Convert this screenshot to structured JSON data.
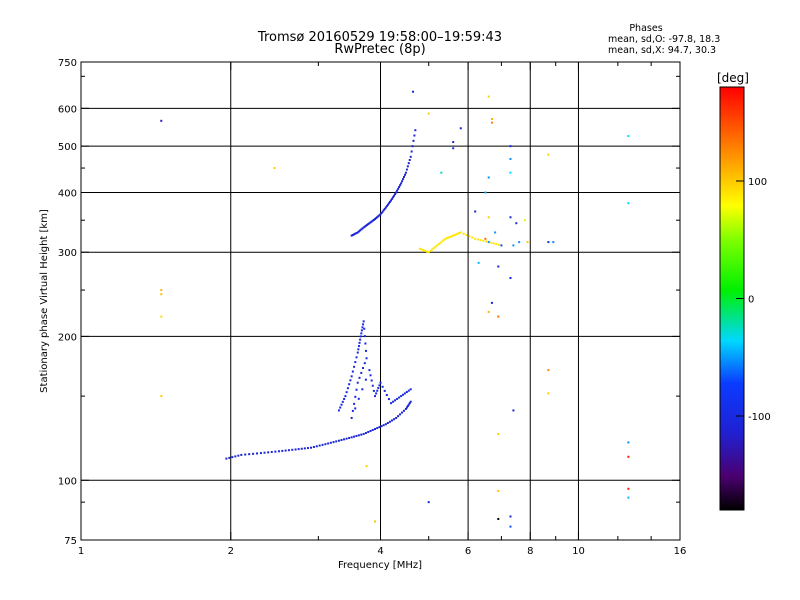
{
  "chart_data": {
    "type": "scatter",
    "title": "Tromsø 20160529 19:58:00–19:59:43",
    "subtitle": "RwPretec (8p)",
    "xlabel": "Frequency [MHz]",
    "ylabel": "Stationary phase Virtual Height [km]",
    "x_scale": "log",
    "y_scale": "log",
    "xlim": [
      1,
      16
    ],
    "ylim": [
      75,
      750
    ],
    "x_ticks": [
      1,
      2,
      4,
      6,
      8,
      10,
      16
    ],
    "x_tick_labels": [
      "1",
      "2",
      "4",
      "6",
      "8",
      "10",
      "16"
    ],
    "x_minor_ticks": [
      3,
      5,
      7,
      9,
      12,
      14
    ],
    "y_ticks": [
      75,
      100,
      200,
      300,
      400,
      500,
      600,
      750
    ],
    "y_tick_labels": [
      "75",
      "100",
      "200",
      "300",
      "400",
      "500",
      "600",
      "750"
    ],
    "y_minor_ticks": [
      90,
      150,
      250,
      350,
      450,
      700
    ],
    "grid_x": [
      2,
      4,
      6,
      8,
      10
    ],
    "grid_y": [
      100,
      200,
      300,
      400,
      500,
      600
    ],
    "colorbar": {
      "unit": "[deg]",
      "range": [
        -180,
        180
      ],
      "ticks": [
        100,
        0,
        -100
      ],
      "tick_labels": [
        "100",
        "0",
        "-100"
      ]
    },
    "phase_info": {
      "title": "Phases",
      "line1": "mean, sd,O: -97.8, 18.3",
      "line2": "mean, sd,X:  94.7, 30.3"
    },
    "traces": [
      {
        "name": "O-F-trace",
        "f": [
          3.5,
          3.6,
          3.7,
          3.8,
          3.9,
          4.0,
          4.1,
          4.2,
          4.3,
          4.4,
          4.5,
          4.6,
          4.7
        ],
        "h": [
          325,
          330,
          338,
          345,
          352,
          360,
          372,
          385,
          400,
          418,
          440,
          475,
          540
        ],
        "phase": -110
      },
      {
        "name": "O-E-trace",
        "f": [
          1.96,
          2.1,
          2.3,
          2.5,
          2.7,
          2.9,
          3.1,
          3.3,
          3.5,
          3.7,
          3.9,
          4.1,
          4.3,
          4.5,
          4.6
        ],
        "h": [
          111,
          113,
          114,
          115,
          116,
          117,
          119,
          121,
          123,
          125,
          128,
          131,
          135,
          141,
          146
        ],
        "phase": -110
      },
      {
        "name": "O-Es-cluster",
        "f": [
          3.3,
          3.4,
          3.5,
          3.6,
          3.65,
          3.7,
          3.75,
          3.6,
          3.5,
          3.8,
          3.9,
          4.0,
          4.2,
          4.4,
          4.6
        ],
        "h": [
          140,
          150,
          165,
          185,
          200,
          215,
          180,
          160,
          135,
          170,
          150,
          160,
          145,
          150,
          155
        ],
        "phase": -105
      },
      {
        "name": "X-F-cluster",
        "f": [
          4.8,
          5.0,
          5.2,
          5.4,
          5.6,
          5.8,
          6.2,
          6.6,
          7.0
        ],
        "h": [
          305,
          300,
          310,
          320,
          325,
          330,
          320,
          315,
          310
        ],
        "phase": 90
      }
    ],
    "scatter_points": [
      {
        "f": 1.45,
        "h": 565,
        "phase": -120
      },
      {
        "f": 2.45,
        "h": 450,
        "phase": 100
      },
      {
        "f": 1.45,
        "h": 250,
        "phase": 110
      },
      {
        "f": 1.45,
        "h": 245,
        "phase": 105
      },
      {
        "f": 1.45,
        "h": 220,
        "phase": 95
      },
      {
        "f": 1.45,
        "h": 150,
        "phase": 100
      },
      {
        "f": 3.75,
        "h": 107,
        "phase": 100
      },
      {
        "f": 3.9,
        "h": 82,
        "phase": 105
      },
      {
        "f": 4.65,
        "h": 650,
        "phase": -110
      },
      {
        "f": 5.0,
        "h": 585,
        "phase": 100
      },
      {
        "f": 5.3,
        "h": 440,
        "phase": -30
      },
      {
        "f": 5.6,
        "h": 510,
        "phase": -110
      },
      {
        "f": 5.6,
        "h": 495,
        "phase": -100
      },
      {
        "f": 5.8,
        "h": 545,
        "phase": -110
      },
      {
        "f": 5.0,
        "h": 90,
        "phase": -110
      },
      {
        "f": 6.6,
        "h": 635,
        "phase": 100
      },
      {
        "f": 6.7,
        "h": 570,
        "phase": 110
      },
      {
        "f": 6.7,
        "h": 560,
        "phase": 130
      },
      {
        "f": 7.3,
        "h": 500,
        "phase": -110
      },
      {
        "f": 7.3,
        "h": 470,
        "phase": -60
      },
      {
        "f": 6.6,
        "h": 430,
        "phase": -60
      },
      {
        "f": 7.3,
        "h": 440,
        "phase": -40
      },
      {
        "f": 6.5,
        "h": 400,
        "phase": -50
      },
      {
        "f": 6.2,
        "h": 365,
        "phase": -110
      },
      {
        "f": 6.6,
        "h": 355,
        "phase": 100
      },
      {
        "f": 7.3,
        "h": 355,
        "phase": -110
      },
      {
        "f": 7.5,
        "h": 345,
        "phase": -100
      },
      {
        "f": 7.8,
        "h": 350,
        "phase": 70
      },
      {
        "f": 6.8,
        "h": 330,
        "phase": -60
      },
      {
        "f": 6.5,
        "h": 320,
        "phase": 140
      },
      {
        "f": 6.6,
        "h": 315,
        "phase": -60
      },
      {
        "f": 7.0,
        "h": 310,
        "phase": -80
      },
      {
        "f": 7.4,
        "h": 310,
        "phase": -60
      },
      {
        "f": 7.6,
        "h": 315,
        "phase": -60
      },
      {
        "f": 7.9,
        "h": 315,
        "phase": 100
      },
      {
        "f": 6.3,
        "h": 285,
        "phase": -50
      },
      {
        "f": 6.9,
        "h": 280,
        "phase": -110
      },
      {
        "f": 7.3,
        "h": 265,
        "phase": -110
      },
      {
        "f": 6.7,
        "h": 235,
        "phase": -110
      },
      {
        "f": 6.9,
        "h": 220,
        "phase": 140
      },
      {
        "f": 6.6,
        "h": 225,
        "phase": 110
      },
      {
        "f": 8.7,
        "h": 480,
        "phase": 100
      },
      {
        "f": 8.7,
        "h": 315,
        "phase": -100
      },
      {
        "f": 8.9,
        "h": 315,
        "phase": -60
      },
      {
        "f": 8.7,
        "h": 170,
        "phase": 130
      },
      {
        "f": 8.7,
        "h": 152,
        "phase": 100
      },
      {
        "f": 7.4,
        "h": 140,
        "phase": -110
      },
      {
        "f": 6.9,
        "h": 125,
        "phase": 100
      },
      {
        "f": 6.9,
        "h": 95,
        "phase": 105
      },
      {
        "f": 6.9,
        "h": 83,
        "phase": -180
      },
      {
        "f": 7.3,
        "h": 84,
        "phase": -110
      },
      {
        "f": 7.3,
        "h": 80,
        "phase": -80
      },
      {
        "f": 12.6,
        "h": 525,
        "phase": -40
      },
      {
        "f": 12.6,
        "h": 380,
        "phase": -40
      },
      {
        "f": 12.6,
        "h": 120,
        "phase": -60
      },
      {
        "f": 12.6,
        "h": 112,
        "phase": 170
      },
      {
        "f": 12.6,
        "h": 96,
        "phase": 170
      },
      {
        "f": 12.6,
        "h": 92,
        "phase": -50
      }
    ]
  }
}
